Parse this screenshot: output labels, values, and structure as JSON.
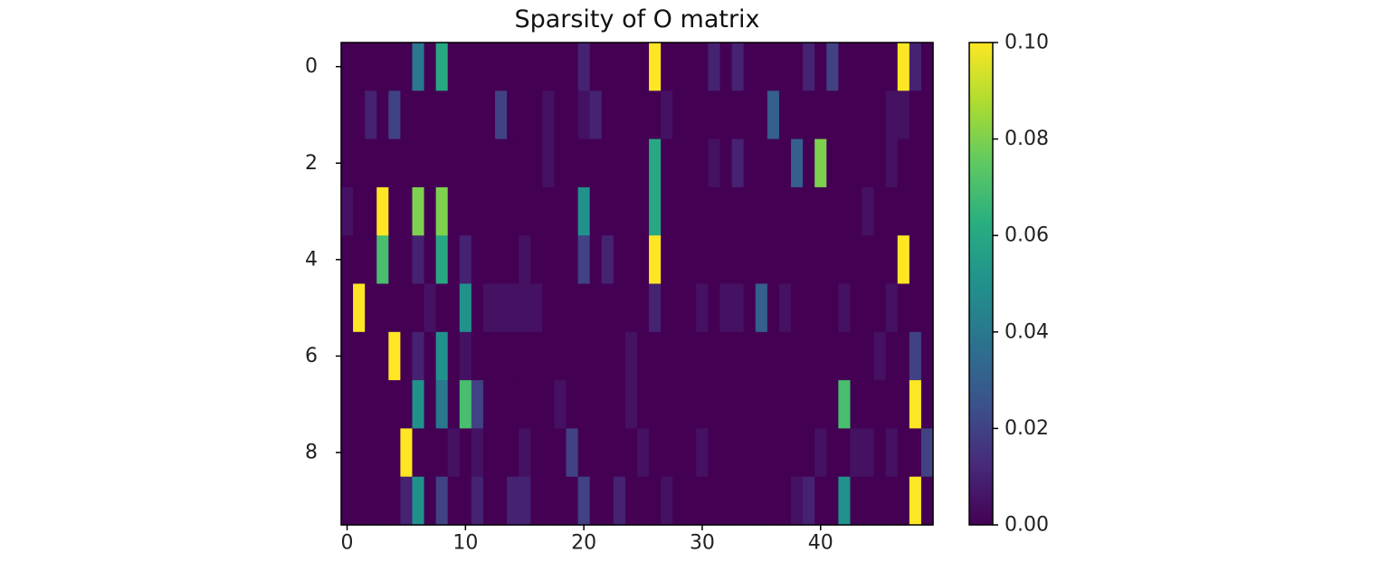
{
  "chart_data": {
    "type": "heatmap",
    "title": "Sparsity of O matrix",
    "xlabel": "",
    "ylabel": "",
    "n_rows": 10,
    "n_cols": 50,
    "xlim": [
      -0.5,
      49.5
    ],
    "ylim": [
      9.5,
      -0.5
    ],
    "x_ticks": [
      0,
      10,
      20,
      30,
      40
    ],
    "y_ticks": [
      0,
      2,
      4,
      6,
      8
    ],
    "colormap": "viridis",
    "background_color": "#ffffff",
    "colorbar": {
      "vmin": 0.0,
      "vmax": 0.1,
      "ticks": [
        "0.00",
        "0.02",
        "0.04",
        "0.06",
        "0.08",
        "0.10"
      ]
    },
    "grid": false,
    "values": [
      [
        0,
        0,
        0,
        0,
        0,
        0,
        0.04,
        0,
        0.06,
        0,
        0,
        0,
        0,
        0,
        0,
        0,
        0,
        0,
        0,
        0,
        0.01,
        0,
        0,
        0,
        0,
        0,
        0.1,
        0,
        0,
        0,
        0,
        0.01,
        0,
        0.01,
        0,
        0,
        0,
        0,
        0,
        0.01,
        0,
        0.02,
        0,
        0,
        0,
        0,
        0,
        0.1,
        0.01,
        0
      ],
      [
        0,
        0,
        0.01,
        0,
        0.02,
        0,
        0,
        0,
        0,
        0,
        0,
        0,
        0,
        0.02,
        0,
        0,
        0,
        0.005,
        0,
        0,
        0.005,
        0.01,
        0,
        0,
        0,
        0,
        0,
        0.005,
        0,
        0,
        0,
        0,
        0,
        0,
        0,
        0,
        0.03,
        0,
        0,
        0,
        0,
        0,
        0,
        0,
        0,
        0,
        0.005,
        0.005,
        0,
        0
      ],
      [
        0,
        0,
        0,
        0,
        0,
        0,
        0,
        0,
        0,
        0,
        0,
        0,
        0,
        0,
        0,
        0,
        0,
        0.005,
        0,
        0,
        0,
        0,
        0,
        0,
        0,
        0,
        0.06,
        0,
        0,
        0,
        0,
        0.005,
        0,
        0.01,
        0,
        0,
        0,
        0,
        0.03,
        0,
        0.08,
        0,
        0,
        0,
        0,
        0,
        0.005,
        0,
        0,
        0
      ],
      [
        0.005,
        0,
        0,
        0.1,
        0,
        0,
        0.08,
        0,
        0.08,
        0,
        0,
        0,
        0,
        0,
        0,
        0,
        0,
        0,
        0,
        0,
        0.05,
        0,
        0,
        0,
        0,
        0,
        0.06,
        0,
        0,
        0,
        0,
        0,
        0,
        0,
        0,
        0,
        0,
        0,
        0,
        0,
        0,
        0,
        0,
        0,
        0.005,
        0,
        0,
        0,
        0,
        0
      ],
      [
        0,
        0,
        0,
        0.07,
        0,
        0,
        0.01,
        0,
        0.06,
        0,
        0.01,
        0,
        0,
        0,
        0,
        0.005,
        0,
        0,
        0,
        0,
        0.02,
        0,
        0.01,
        0,
        0,
        0,
        0.1,
        0,
        0,
        0,
        0,
        0,
        0,
        0,
        0,
        0,
        0,
        0,
        0,
        0,
        0,
        0,
        0,
        0,
        0,
        0,
        0,
        0.1,
        0,
        0
      ],
      [
        0,
        0.1,
        0,
        0,
        0,
        0,
        0,
        0.005,
        0,
        0,
        0.05,
        0,
        0.005,
        0.005,
        0.005,
        0.005,
        0.005,
        0,
        0,
        0,
        0,
        0,
        0,
        0,
        0,
        0,
        0.01,
        0,
        0,
        0,
        0.005,
        0,
        0.005,
        0.005,
        0,
        0.03,
        0,
        0.005,
        0,
        0,
        0,
        0,
        0.005,
        0,
        0,
        0,
        0.005,
        0,
        0,
        0
      ],
      [
        0,
        0,
        0,
        0,
        0.1,
        0,
        0.01,
        0,
        0.05,
        0,
        0.005,
        0,
        0,
        0,
        0,
        0,
        0,
        0,
        0,
        0,
        0,
        0,
        0,
        0,
        0.005,
        0,
        0,
        0,
        0,
        0,
        0,
        0,
        0,
        0,
        0,
        0,
        0,
        0,
        0,
        0,
        0,
        0,
        0,
        0,
        0,
        0.005,
        0,
        0,
        0.02,
        0
      ],
      [
        0,
        0,
        0,
        0,
        0,
        0,
        0.05,
        0,
        0.04,
        0,
        0.07,
        0.02,
        0,
        0,
        0,
        0,
        0,
        0,
        0.005,
        0,
        0,
        0,
        0,
        0,
        0.005,
        0,
        0,
        0,
        0,
        0,
        0,
        0,
        0,
        0,
        0,
        0,
        0,
        0,
        0,
        0,
        0,
        0,
        0.07,
        0,
        0,
        0,
        0,
        0,
        0.1,
        0
      ],
      [
        0,
        0,
        0,
        0,
        0,
        0.1,
        0,
        0,
        0,
        0.005,
        0,
        0.005,
        0,
        0,
        0,
        0.005,
        0,
        0,
        0,
        0.02,
        0,
        0,
        0,
        0,
        0,
        0.005,
        0,
        0,
        0,
        0,
        0.005,
        0,
        0,
        0,
        0,
        0,
        0,
        0,
        0,
        0,
        0.005,
        0,
        0,
        0.005,
        0.005,
        0,
        0.005,
        0,
        0,
        0.02
      ],
      [
        0,
        0,
        0,
        0,
        0,
        0.01,
        0.05,
        0,
        0.02,
        0,
        0,
        0.01,
        0,
        0,
        0.01,
        0.01,
        0,
        0,
        0,
        0,
        0.02,
        0,
        0,
        0.01,
        0,
        0,
        0,
        0.005,
        0,
        0,
        0,
        0,
        0,
        0,
        0,
        0,
        0,
        0,
        0.005,
        0.01,
        0,
        0,
        0.05,
        0,
        0,
        0,
        0,
        0,
        0.1,
        0
      ]
    ]
  }
}
